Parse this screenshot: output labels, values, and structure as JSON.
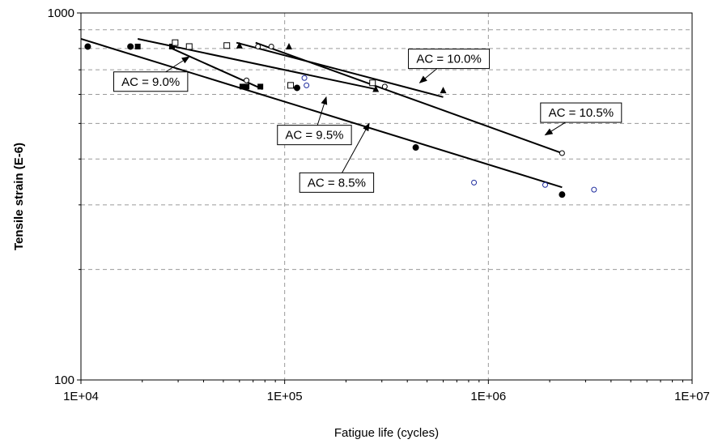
{
  "chart_data": {
    "type": "scatter",
    "title": "",
    "xlabel": "Fatigue life (cycles)",
    "ylabel": "Tensile strain (E-6)",
    "x_scale": "log",
    "y_scale": "log",
    "xlim": [
      10000,
      10000000
    ],
    "ylim": [
      100,
      1000
    ],
    "x_ticks": [
      {
        "value": 10000,
        "label": "1E+04"
      },
      {
        "value": 100000,
        "label": "1E+05"
      },
      {
        "value": 1000000,
        "label": "1E+06"
      },
      {
        "value": 10000000,
        "label": "1E+07"
      }
    ],
    "y_ticks": [
      {
        "value": 100,
        "label": "100"
      },
      {
        "value": 1000,
        "label": "1000"
      }
    ],
    "y_minor_grid": [
      200,
      300,
      400,
      500,
      600,
      700,
      800,
      900
    ],
    "x_minor_grid": [
      20000,
      30000,
      40000,
      50000,
      60000,
      70000,
      80000,
      90000,
      200000,
      300000,
      400000,
      500000,
      600000,
      700000,
      800000,
      900000,
      2000000,
      3000000,
      4000000,
      5000000,
      6000000,
      7000000,
      8000000,
      9000000
    ],
    "grid": true,
    "legend": "none",
    "series": [
      {
        "marker": "filled-circle",
        "color": "#000000",
        "points": [
          [
            10800,
            810
          ],
          [
            17500,
            810
          ],
          [
            115000,
            625
          ],
          [
            440000,
            430
          ],
          [
            2300000,
            320
          ]
        ],
        "fit": [
          [
            10000,
            850
          ],
          [
            2300000,
            335
          ]
        ]
      },
      {
        "marker": "filled-square",
        "color": "#000000",
        "points": [
          [
            19000,
            810
          ],
          [
            28000,
            810
          ],
          [
            62000,
            630
          ],
          [
            65000,
            630
          ],
          [
            76000,
            630
          ]
        ],
        "fit": [
          [
            28000,
            800
          ],
          [
            78000,
            620
          ]
        ]
      },
      {
        "marker": "open-square",
        "color": "#000000",
        "points": [
          [
            29000,
            830
          ],
          [
            34000,
            810
          ],
          [
            52000,
            815
          ],
          [
            107000,
            635
          ],
          [
            270000,
            645
          ]
        ],
        "fit": [
          [
            19000,
            850
          ],
          [
            280000,
            620
          ]
        ]
      },
      {
        "marker": "filled-triangle",
        "color": "#000000",
        "points": [
          [
            60000,
            815
          ],
          [
            105000,
            810
          ],
          [
            280000,
            620
          ],
          [
            600000,
            615
          ]
        ],
        "fit": [
          [
            58000,
            830
          ],
          [
            600000,
            590
          ]
        ]
      },
      {
        "marker": "open-circle",
        "color": "#000000",
        "points": [
          [
            65000,
            655
          ],
          [
            74000,
            810
          ],
          [
            86000,
            810
          ],
          [
            310000,
            630
          ],
          [
            2300000,
            415
          ]
        ],
        "fit": [
          [
            72000,
            830
          ],
          [
            2300000,
            415
          ]
        ]
      },
      {
        "marker": "open-circle",
        "color": "#1f2d9e",
        "points": [
          [
            125000,
            665
          ],
          [
            128000,
            635
          ],
          [
            850000,
            345
          ],
          [
            1900000,
            340
          ],
          [
            3300000,
            330
          ]
        ],
        "fit": null
      }
    ],
    "annotations": [
      {
        "text": "AC = 8.5%",
        "box_at": [
          180000,
          345
        ],
        "arrow_to": [
          260000,
          500
        ]
      },
      {
        "text": "AC = 9.0%",
        "box_at": [
          22000,
          650
        ],
        "arrow_to": [
          34000,
          760
        ]
      },
      {
        "text": "AC = 9.5%",
        "box_at": [
          140000,
          465
        ],
        "arrow_to": [
          160000,
          590
        ]
      },
      {
        "text": "AC = 10.0%",
        "box_at": [
          640000,
          750
        ],
        "arrow_to": [
          460000,
          645
        ]
      },
      {
        "text": "AC = 10.5%",
        "box_at": [
          2850000,
          535
        ],
        "arrow_to": [
          1900000,
          465
        ]
      }
    ]
  }
}
